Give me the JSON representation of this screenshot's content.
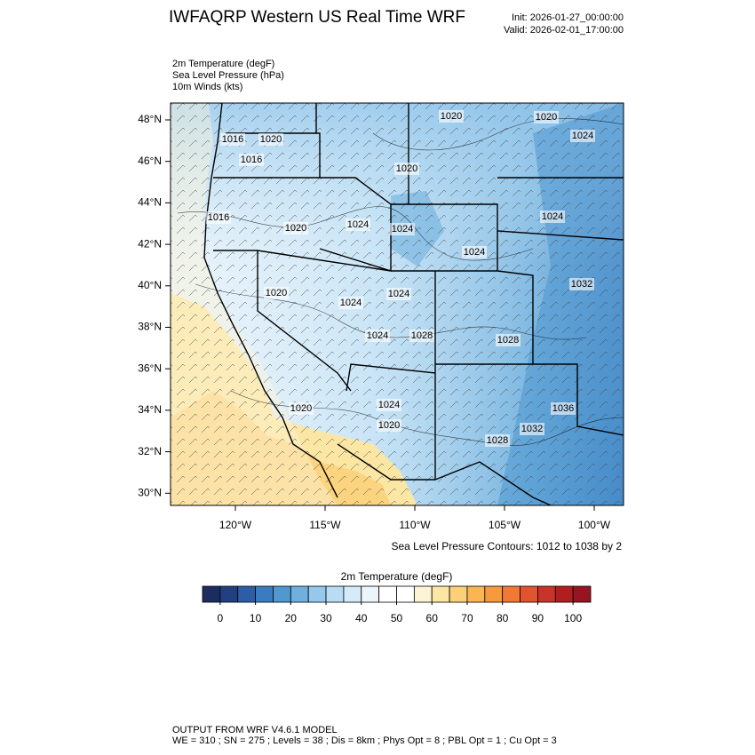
{
  "header": {
    "title": "IWFAQRP Western US Real Time WRF",
    "init": "Init: 2026-01-27_00:00:00",
    "valid": "Valid: 2026-02-01_17:00:00"
  },
  "fields": [
    "2m Temperature   (degF)",
    "Sea Level Pressure   (hPa)",
    "10m Winds   (kts)"
  ],
  "map": {
    "lat_labels": [
      "48°N",
      "46°N",
      "44°N",
      "42°N",
      "40°N",
      "38°N",
      "36°N",
      "34°N",
      "32°N",
      "30°N"
    ],
    "lon_labels": [
      "120°W",
      "115°W",
      "110°W",
      "105°W",
      "100°W"
    ],
    "contour_labels": [
      "1020",
      "1020",
      "1024",
      "1020",
      "1016",
      "1016",
      "1020",
      "1024",
      "1016",
      "1020",
      "1024",
      "1024",
      "1024",
      "1032",
      "1020",
      "1024",
      "1024",
      "1028",
      "1024",
      "1028",
      "1020",
      "1024",
      "1020",
      "1036",
      "1032",
      "1028"
    ],
    "contour_note": "Sea Level Pressure Contours: 1012 to 1038 by 2"
  },
  "colorbar": {
    "title": "2m Temperature  (degF)",
    "lim": [
      -5,
      105
    ],
    "ticks": [
      0,
      10,
      20,
      30,
      40,
      50,
      60,
      70,
      80,
      90,
      100
    ],
    "colors": [
      "#1d2c5f",
      "#233f82",
      "#2c5ea8",
      "#3b7cc0",
      "#4f98d0",
      "#70b0de",
      "#96c8ec",
      "#b7dcf4",
      "#d6ebf8",
      "#ecf5fb",
      "#ffffff",
      "#ffffff",
      "#fdf4d6",
      "#fce6a3",
      "#fbd079",
      "#fab554",
      "#f7993f",
      "#f07a35",
      "#e1542f",
      "#c93328",
      "#b21d22",
      "#951620"
    ]
  },
  "footer": {
    "line1": "OUTPUT FROM WRF V4.6.1 MODEL",
    "line2": "WE = 310 ; SN = 275 ; Levels = 38 ; Dis = 8km ; Phys Opt = 8 ; PBL Opt = 1 ; Cu Opt = 3"
  }
}
